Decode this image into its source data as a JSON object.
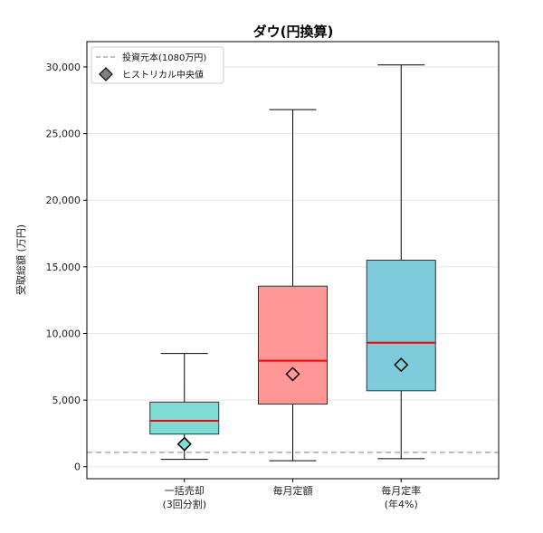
{
  "chart_data": {
    "type": "box",
    "title": "ダウ(円換算)",
    "ylabel": "受取総額 (万円)",
    "xlabel": "",
    "ylim": [
      -900,
      31900
    ],
    "yticks": [
      0,
      5000,
      10000,
      15000,
      20000,
      25000,
      30000
    ],
    "ytick_labels": [
      "0",
      "5,000",
      "10,000",
      "15,000",
      "20,000",
      "25,000",
      "30,000"
    ],
    "grid": true,
    "legend_position": "top-left",
    "categories": [
      {
        "line1": "一括売却",
        "line2": "(3回分割)"
      },
      {
        "line1": "毎月定額",
        "line2": ""
      },
      {
        "line1": "毎月定率",
        "line2": "(年4%)"
      }
    ],
    "boxes": [
      {
        "whisker_low": 550,
        "q1": 2450,
        "median": 3450,
        "q3": 4850,
        "whisker_high": 8500,
        "historical_median": 1700,
        "color": "#7fdbd6"
      },
      {
        "whisker_low": 450,
        "q1": 4700,
        "median": 7950,
        "q3": 13550,
        "whisker_high": 26800,
        "historical_median": 6950,
        "color": "#ff9796"
      },
      {
        "whisker_low": 600,
        "q1": 5700,
        "median": 9300,
        "q3": 15500,
        "whisker_high": 30150,
        "historical_median": 7650,
        "color": "#7ecbdc"
      }
    ],
    "principal_line": {
      "value": 1080,
      "label": "投資元本(1080万円)",
      "color": "#aaaaaa"
    },
    "median_line_color": "#ff0000",
    "legend": [
      {
        "key": "principal",
        "label": "投資元本(1080万円)"
      },
      {
        "key": "marker",
        "label": "ヒストリカル中央値",
        "color": "#808080"
      }
    ]
  }
}
